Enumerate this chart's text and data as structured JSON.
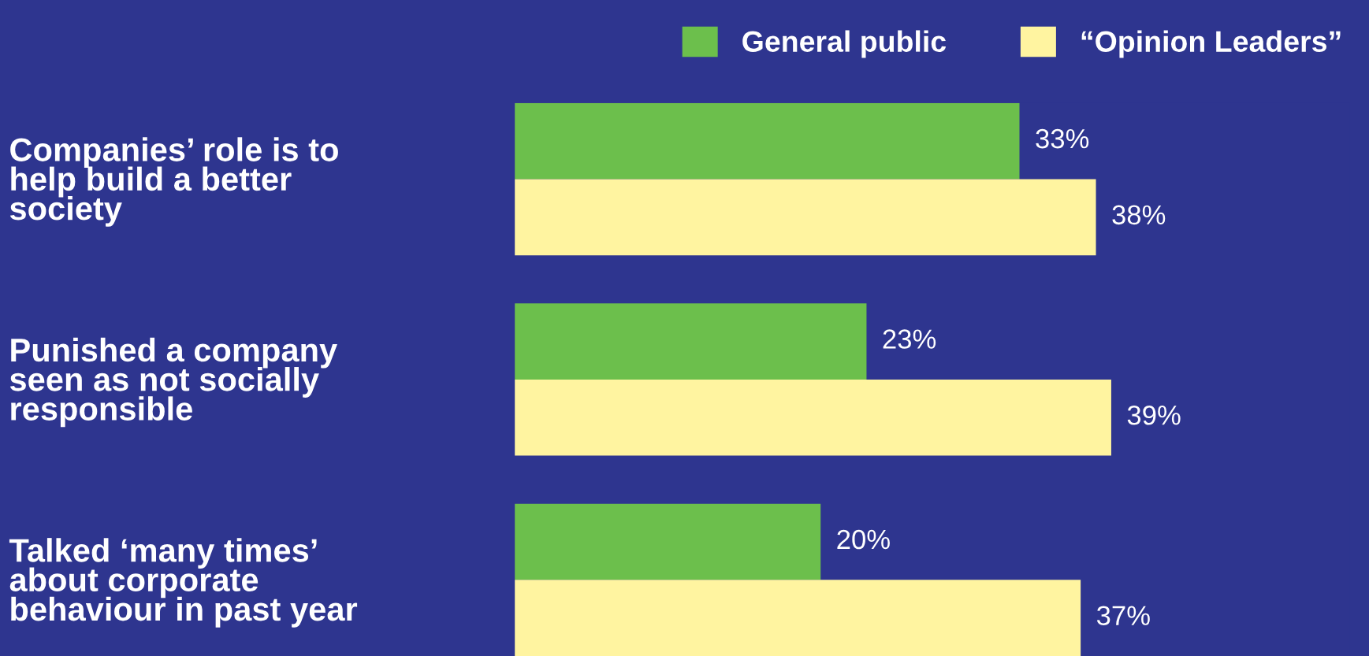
{
  "chart_data": {
    "type": "bar",
    "orientation": "horizontal",
    "legend": "top right",
    "categories": [
      "Companies’ role is to\nhelp build a better\nsociety",
      "Punished a company\nseen as not socially\nresponsible",
      "Talked ‘many times’\nabout corporate\nbehaviour in past year"
    ],
    "series": [
      {
        "name": "General public",
        "color": "#6cbf4c",
        "values": [
          33,
          23,
          20
        ],
        "value_labels": [
          "33%",
          "23%",
          "20%"
        ]
      },
      {
        "name": "“Opinion Leaders”",
        "color": "#fff4a0",
        "values": [
          38,
          39,
          37
        ],
        "value_labels": [
          "38%",
          "39%",
          "37%"
        ]
      }
    ]
  }
}
